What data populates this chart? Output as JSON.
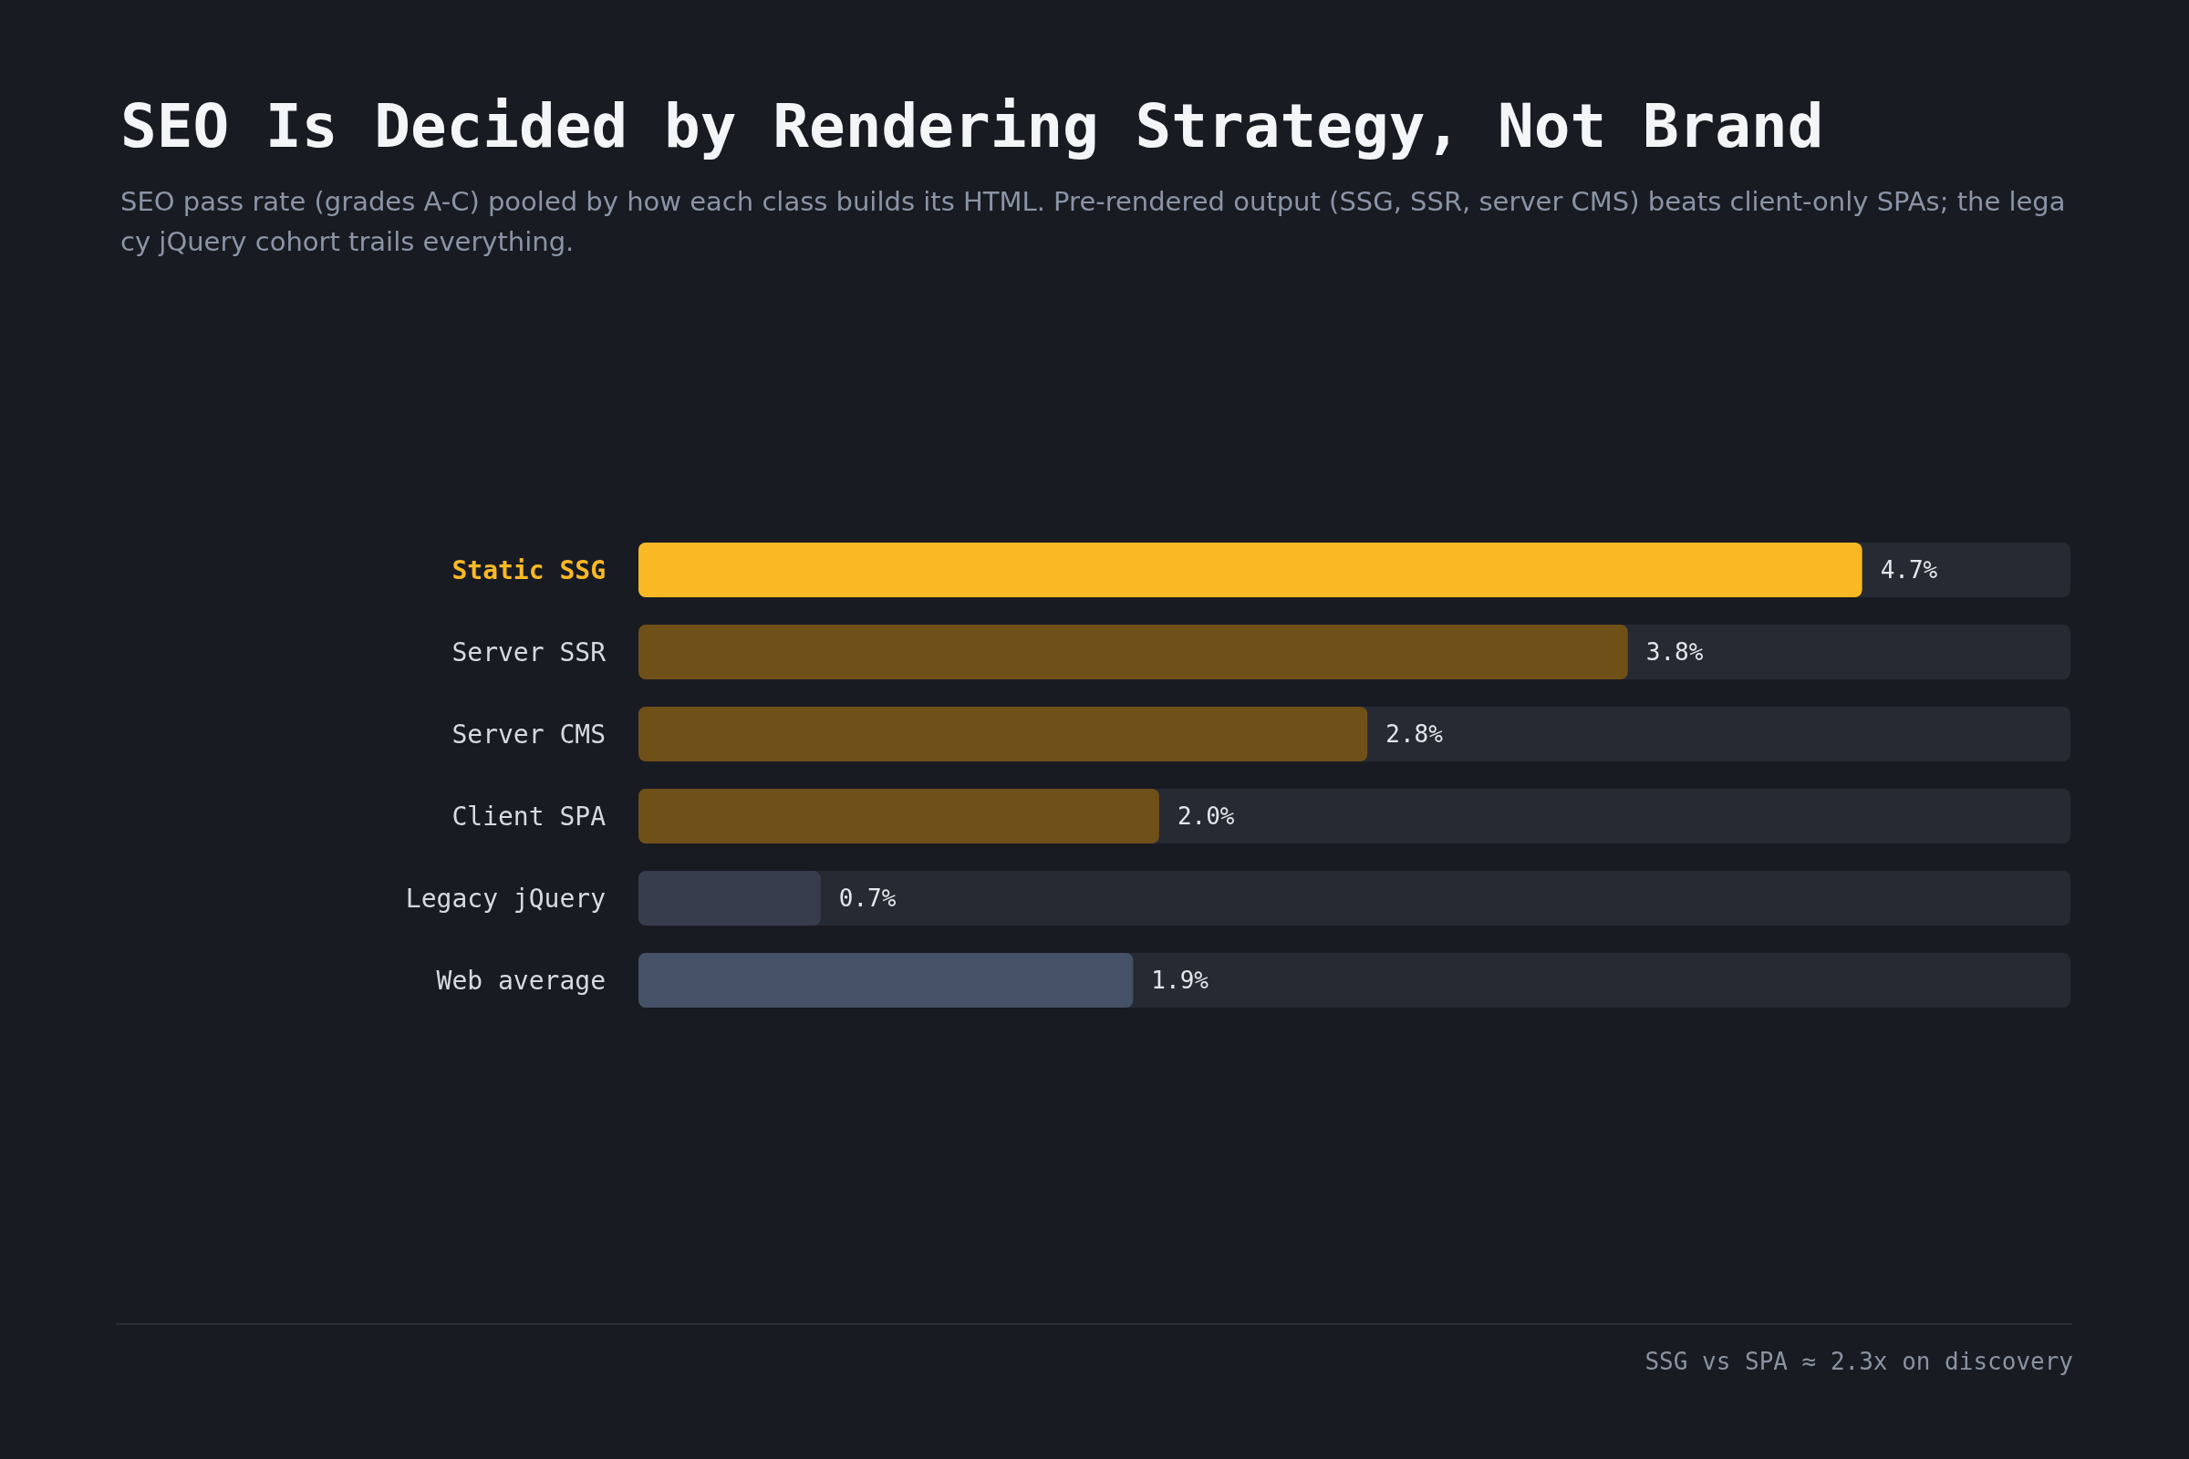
{
  "chart_data": {
    "type": "bar",
    "orientation": "horizontal",
    "title": "SEO Is Decided by Rendering Strategy, Not Brand",
    "subtitle": "SEO pass rate (grades A-C) pooled by how each class builds its HTML. Pre-rendered output (SSG, SSR, server CMS) beats client-only SPAs; the legacy jQuery cohort trails everything.",
    "categories": [
      "Static SSG",
      "Server SSR",
      "Server CMS",
      "Client SPA",
      "Legacy jQuery",
      "Web average"
    ],
    "values": [
      4.7,
      3.8,
      2.8,
      2.0,
      0.7,
      1.9
    ],
    "colors": [
      "#f9b824",
      "#6f5018",
      "#6f5018",
      "#6f5018",
      "#373d4d",
      "#445166"
    ],
    "value_labels": [
      "4.7%",
      "3.8%",
      "2.8%",
      "2.0%",
      "0.7%",
      "1.9%"
    ],
    "xlim": [
      0,
      5.5
    ],
    "tick_labels": "y",
    "annotations": [
      "SSG vs SPA ≈ 2.3x on discovery"
    ]
  }
}
